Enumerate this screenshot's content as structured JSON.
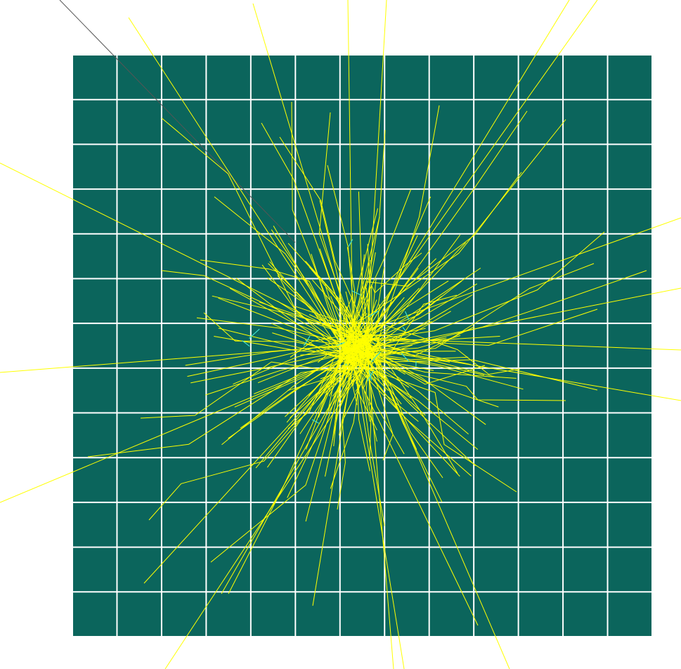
{
  "scene": {
    "colors": {
      "background": "#ffffff",
      "panel": "#0b655c",
      "grid": "#ffffff",
      "track": "#ffff00",
      "secondary_track": "#40e0d0",
      "external_line": "#555555"
    },
    "grid": {
      "rows": 13,
      "cols": 13
    }
  }
}
